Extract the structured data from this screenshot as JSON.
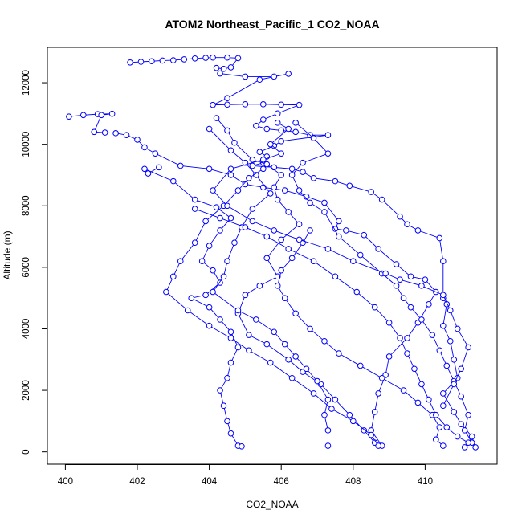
{
  "chart_data": {
    "type": "scatter",
    "title": "ATOM2 Northeast_Pacific_1 CO2_NOAA",
    "xlabel": "CO2_NOAA",
    "ylabel": "Altitude (m)",
    "xlim": [
      399.5,
      412.0
    ],
    "ylim": [
      -400,
      13150
    ],
    "xticks": [
      400,
      402,
      404,
      406,
      408,
      410
    ],
    "yticks": [
      0,
      2000,
      4000,
      6000,
      8000,
      10000,
      12000
    ],
    "grid": false,
    "marker": "open-circle",
    "line": true,
    "series_color": "#0000ff",
    "series": [
      {
        "points": [
          [
            401.8,
            12660
          ],
          [
            402.1,
            12680
          ],
          [
            402.4,
            12700
          ],
          [
            402.7,
            12720
          ],
          [
            403.0,
            12730
          ],
          [
            403.3,
            12760
          ],
          [
            403.6,
            12790
          ],
          [
            403.9,
            12810
          ],
          [
            404.1,
            12820
          ],
          [
            404.5,
            12820
          ],
          [
            404.8,
            12800
          ],
          [
            404.6,
            12500
          ],
          [
            404.4,
            12450
          ],
          [
            404.2,
            12480
          ],
          [
            404.3,
            12300
          ],
          [
            405.0,
            12200
          ],
          [
            405.8,
            12200
          ],
          [
            406.2,
            12290
          ],
          [
            405.4,
            12100
          ],
          [
            404.5,
            11500
          ],
          [
            404.1,
            11280
          ],
          [
            404.5,
            11290
          ],
          [
            405.0,
            11300
          ],
          [
            405.5,
            11300
          ],
          [
            406.0,
            11290
          ],
          [
            406.5,
            11280
          ],
          [
            405.9,
            11000
          ],
          [
            405.5,
            10800
          ],
          [
            405.3,
            10600
          ],
          [
            405.6,
            10500
          ],
          [
            406.0,
            10450
          ],
          [
            406.4,
            10400
          ],
          [
            406.8,
            10300
          ],
          [
            407.3,
            10300
          ],
          [
            406.0,
            10100
          ],
          [
            405.8,
            9950
          ],
          [
            405.4,
            9750
          ],
          [
            405.6,
            9600
          ],
          [
            405.5,
            9400
          ],
          [
            405.2,
            9300
          ],
          [
            405.8,
            9250
          ],
          [
            406.3,
            9200
          ],
          [
            406.6,
            9100
          ],
          [
            406.9,
            8900
          ],
          [
            407.5,
            8800
          ],
          [
            407.9,
            8650
          ],
          [
            408.5,
            8450
          ],
          [
            408.8,
            8200
          ],
          [
            409.3,
            7650
          ],
          [
            409.5,
            7400
          ],
          [
            409.8,
            7200
          ],
          [
            410.4,
            6950
          ],
          [
            410.5,
            6200
          ],
          [
            410.5,
            5000
          ],
          [
            410.6,
            4800
          ],
          [
            410.5,
            4100
          ],
          [
            410.7,
            3600
          ],
          [
            410.8,
            3000
          ],
          [
            410.9,
            2400
          ],
          [
            410.5,
            1900
          ],
          [
            410.8,
            1300
          ],
          [
            411.0,
            900
          ],
          [
            411.3,
            500
          ],
          [
            411.4,
            150
          ]
        ]
      },
      {
        "points": [
          [
            400.1,
            10900
          ],
          [
            400.5,
            10950
          ],
          [
            400.9,
            10980
          ],
          [
            401.3,
            10990
          ],
          [
            401.0,
            10950
          ],
          [
            400.8,
            10400
          ],
          [
            401.1,
            10380
          ],
          [
            401.4,
            10360
          ],
          [
            401.7,
            10300
          ],
          [
            402.0,
            10150
          ],
          [
            402.2,
            9900
          ],
          [
            402.5,
            9700
          ],
          [
            403.2,
            9300
          ],
          [
            404.0,
            9200
          ],
          [
            404.6,
            9000
          ],
          [
            405.0,
            8700
          ],
          [
            405.5,
            8600
          ],
          [
            406.1,
            8500
          ],
          [
            406.7,
            8300
          ],
          [
            407.2,
            8100
          ],
          [
            407.6,
            7500
          ],
          [
            407.5,
            7250
          ],
          [
            407.8,
            7200
          ],
          [
            408.3,
            7050
          ],
          [
            408.7,
            6600
          ],
          [
            409.2,
            6100
          ],
          [
            409.6,
            5700
          ],
          [
            410.0,
            5600
          ],
          [
            410.3,
            5200
          ],
          [
            410.1,
            4800
          ],
          [
            409.8,
            4200
          ],
          [
            409.5,
            3700
          ],
          [
            409.0,
            3100
          ],
          [
            408.9,
            2500
          ],
          [
            408.7,
            1900
          ],
          [
            408.6,
            1300
          ],
          [
            408.5,
            700
          ],
          [
            408.8,
            200
          ]
        ]
      },
      {
        "points": [
          [
            402.6,
            9250
          ],
          [
            402.3,
            9050
          ],
          [
            402.2,
            9200
          ],
          [
            403.0,
            8800
          ],
          [
            403.6,
            8200
          ],
          [
            404.2,
            7950
          ],
          [
            404.6,
            7600
          ],
          [
            404.3,
            7200
          ],
          [
            404.0,
            6700
          ],
          [
            403.8,
            6200
          ],
          [
            404.1,
            5900
          ],
          [
            404.3,
            5500
          ],
          [
            403.9,
            5100
          ],
          [
            403.5,
            5000
          ],
          [
            404.0,
            4700
          ],
          [
            404.3,
            4300
          ],
          [
            404.6,
            3900
          ],
          [
            404.8,
            3400
          ],
          [
            404.6,
            2900
          ],
          [
            404.5,
            2400
          ],
          [
            404.3,
            2000
          ],
          [
            404.4,
            1500
          ],
          [
            404.5,
            1000
          ],
          [
            404.6,
            600
          ],
          [
            404.8,
            200
          ],
          [
            404.9,
            180
          ]
        ]
      },
      {
        "points": [
          [
            404.2,
            10850
          ],
          [
            404.5,
            10450
          ],
          [
            404.7,
            10050
          ],
          [
            405.2,
            9500
          ],
          [
            405.6,
            9350
          ],
          [
            406.0,
            9000
          ],
          [
            405.8,
            8600
          ],
          [
            405.9,
            8200
          ],
          [
            406.2,
            7800
          ],
          [
            406.5,
            7400
          ],
          [
            406.0,
            6900
          ],
          [
            405.6,
            6300
          ],
          [
            405.9,
            5700
          ],
          [
            405.4,
            5400
          ],
          [
            405.0,
            5100
          ],
          [
            404.8,
            4500
          ],
          [
            405.1,
            3800
          ],
          [
            405.6,
            3500
          ],
          [
            406.2,
            3000
          ],
          [
            406.6,
            2600
          ],
          [
            407.1,
            2200
          ],
          [
            407.5,
            1700
          ],
          [
            407.9,
            1200
          ],
          [
            408.3,
            700
          ],
          [
            408.6,
            300
          ]
        ]
      },
      {
        "points": [
          [
            404.0,
            10500
          ],
          [
            404.6,
            9800
          ],
          [
            405.0,
            9400
          ],
          [
            405.3,
            9000
          ],
          [
            405.7,
            8400
          ],
          [
            405.2,
            7900
          ],
          [
            404.9,
            7300
          ],
          [
            404.7,
            6800
          ],
          [
            404.5,
            6200
          ],
          [
            404.4,
            5700
          ],
          [
            404.1,
            5200
          ],
          [
            404.8,
            4600
          ],
          [
            405.3,
            4300
          ],
          [
            405.8,
            3900
          ],
          [
            406.1,
            3500
          ],
          [
            406.4,
            3100
          ],
          [
            406.7,
            2700
          ],
          [
            407.0,
            2300
          ],
          [
            407.3,
            1700
          ],
          [
            407.2,
            1200
          ],
          [
            407.3,
            700
          ],
          [
            407.3,
            200
          ]
        ]
      },
      {
        "points": [
          [
            406.4,
            10700
          ],
          [
            406.9,
            10200
          ],
          [
            407.3,
            9700
          ],
          [
            406.6,
            9400
          ],
          [
            406.3,
            9000
          ],
          [
            406.5,
            8500
          ],
          [
            406.8,
            8100
          ],
          [
            407.2,
            7800
          ],
          [
            407.6,
            7000
          ],
          [
            408.2,
            6400
          ],
          [
            408.8,
            5800
          ],
          [
            409.2,
            5400
          ],
          [
            409.4,
            5000
          ],
          [
            409.6,
            4700
          ],
          [
            409.9,
            4300
          ],
          [
            410.2,
            3800
          ],
          [
            410.4,
            3300
          ],
          [
            410.6,
            2800
          ],
          [
            410.8,
            2300
          ],
          [
            411.0,
            1800
          ],
          [
            411.2,
            1200
          ],
          [
            411.1,
            700
          ],
          [
            411.3,
            300
          ],
          [
            411.1,
            150
          ]
        ]
      },
      {
        "points": [
          [
            405.5,
            9200
          ],
          [
            405.1,
            8900
          ],
          [
            404.8,
            8500
          ],
          [
            404.4,
            8000
          ],
          [
            403.9,
            7500
          ],
          [
            403.6,
            6800
          ],
          [
            403.2,
            6200
          ],
          [
            403.0,
            5700
          ],
          [
            402.8,
            5200
          ],
          [
            403.4,
            4600
          ],
          [
            404.0,
            4100
          ],
          [
            404.6,
            3700
          ],
          [
            405.1,
            3300
          ],
          [
            405.7,
            2900
          ],
          [
            406.3,
            2400
          ],
          [
            406.9,
            1900
          ],
          [
            407.4,
            1400
          ],
          [
            408.0,
            1000
          ],
          [
            408.5,
            550
          ],
          [
            408.7,
            200
          ]
        ]
      },
      {
        "points": [
          [
            406.8,
            7200
          ],
          [
            406.6,
            6800
          ],
          [
            406.3,
            6300
          ],
          [
            406.0,
            5900
          ],
          [
            405.9,
            5400
          ],
          [
            406.1,
            5000
          ],
          [
            406.4,
            4500
          ],
          [
            406.8,
            4000
          ],
          [
            407.2,
            3600
          ],
          [
            407.6,
            3200
          ],
          [
            408.2,
            2800
          ],
          [
            408.8,
            2400
          ],
          [
            409.4,
            2000
          ],
          [
            409.8,
            1600
          ],
          [
            410.2,
            1200
          ],
          [
            410.4,
            800
          ],
          [
            410.3,
            400
          ],
          [
            410.5,
            200
          ]
        ]
      },
      {
        "points": [
          [
            403.6,
            7900
          ],
          [
            404.3,
            7600
          ],
          [
            405.0,
            7300
          ],
          [
            405.6,
            7000
          ],
          [
            406.2,
            6600
          ],
          [
            406.9,
            6200
          ],
          [
            407.5,
            5700
          ],
          [
            408.1,
            5200
          ],
          [
            408.6,
            4700
          ],
          [
            409.0,
            4200
          ],
          [
            409.3,
            3700
          ],
          [
            409.5,
            3200
          ],
          [
            409.7,
            2700
          ],
          [
            409.9,
            2200
          ],
          [
            410.1,
            1700
          ],
          [
            410.3,
            1200
          ],
          [
            410.6,
            800
          ],
          [
            410.9,
            500
          ],
          [
            411.2,
            300
          ]
        ]
      },
      {
        "points": [
          [
            405.9,
            10700
          ],
          [
            406.2,
            10500
          ],
          [
            405.7,
            10000
          ],
          [
            406.0,
            9700
          ],
          [
            405.5,
            9500
          ],
          [
            404.6,
            9200
          ],
          [
            404.1,
            8500
          ],
          [
            404.5,
            8000
          ],
          [
            405.2,
            7500
          ],
          [
            405.8,
            7200
          ],
          [
            406.5,
            6900
          ],
          [
            407.3,
            6600
          ],
          [
            408.0,
            6200
          ],
          [
            408.9,
            5800
          ],
          [
            409.3,
            5600
          ],
          [
            409.9,
            5400
          ],
          [
            410.5,
            5100
          ],
          [
            410.7,
            4600
          ],
          [
            410.9,
            4000
          ],
          [
            411.2,
            3400
          ],
          [
            411.0,
            2700
          ],
          [
            410.8,
            2200
          ],
          [
            410.5,
            1500
          ]
        ]
      }
    ]
  }
}
